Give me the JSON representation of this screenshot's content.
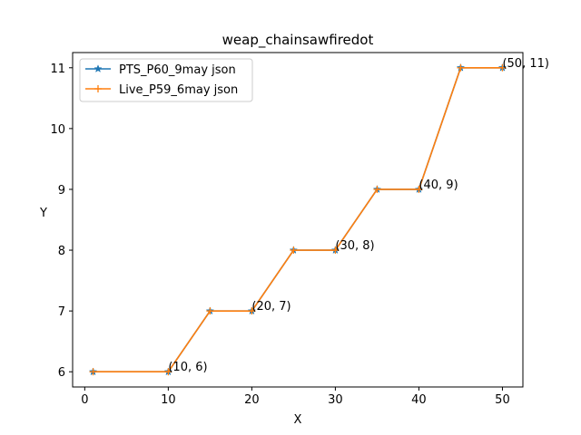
{
  "chart_data": {
    "type": "line",
    "title": "weap_chainsawfiredot",
    "xlabel": "X",
    "ylabel": "Y",
    "xlim": [
      -1.45,
      52.45
    ],
    "ylim": [
      5.75,
      11.25
    ],
    "xticks": [
      0,
      10,
      20,
      30,
      40,
      50
    ],
    "yticks": [
      6,
      7,
      8,
      9,
      10,
      11
    ],
    "grid": false,
    "legend_position": "upper left",
    "series": [
      {
        "name": "PTS_P60_9may json",
        "color": "#1f77b4",
        "marker": "star",
        "x": [
          1,
          10,
          15,
          20,
          25,
          30,
          35,
          40,
          45,
          50
        ],
        "y": [
          6,
          6,
          7,
          7,
          8,
          8,
          9,
          9,
          11,
          11
        ]
      },
      {
        "name": "Live_P59_6may json",
        "color": "#ff7f0e",
        "marker": "plus",
        "x": [
          1,
          10,
          15,
          20,
          25,
          30,
          35,
          40,
          45,
          50
        ],
        "y": [
          6,
          6,
          7,
          7,
          8,
          8,
          9,
          9,
          11,
          11
        ]
      }
    ],
    "annotations": [
      {
        "x": 10,
        "y": 6,
        "text": "(10, 6)"
      },
      {
        "x": 20,
        "y": 7,
        "text": "(20, 7)"
      },
      {
        "x": 30,
        "y": 8,
        "text": "(30, 8)"
      },
      {
        "x": 40,
        "y": 9,
        "text": "(40, 9)"
      },
      {
        "x": 50,
        "y": 11,
        "text": "(50, 11)"
      }
    ]
  }
}
